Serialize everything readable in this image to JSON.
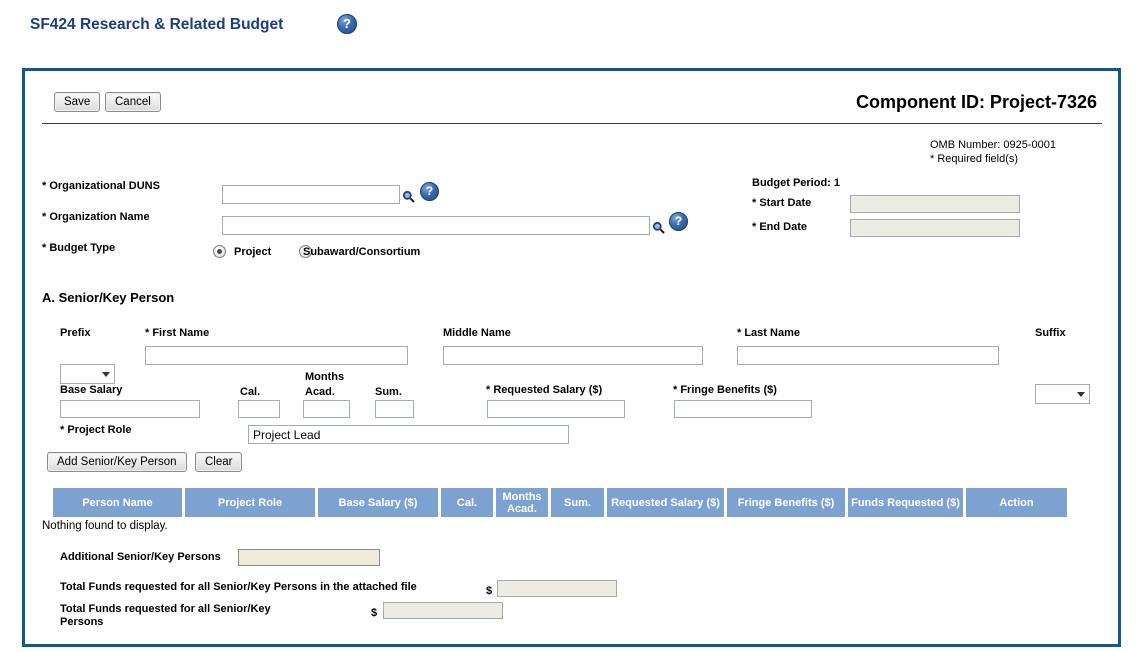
{
  "header": {
    "title": "SF424 Research & Related Budget"
  },
  "icons": {
    "help": "?"
  },
  "panel": {
    "save_label": "Save",
    "cancel_label": "Cancel",
    "component_id": "Component ID: Project-7326",
    "omb_number": "OMB Number: 0925-0001",
    "required_note": "* Required field(s)"
  },
  "org": {
    "duns_label": "* Organizational DUNS",
    "duns_value": "",
    "name_label": "* Organization Name",
    "name_value": "",
    "budget_type_label": "* Budget Type",
    "option_project": "Project",
    "option_subaward": "Subaward/Consortium",
    "selected_option": "Project"
  },
  "budget_period": {
    "label": "Budget Period: 1",
    "start_label": "* Start Date",
    "start_value": "",
    "end_label": "* End Date",
    "end_value": ""
  },
  "senior_key_person": {
    "heading": "A. Senior/Key Person",
    "prefix_label": "Prefix",
    "first_name_label": "* First Name",
    "middle_name_label": "Middle Name",
    "last_name_label": "* Last Name",
    "suffix_label": "Suffix",
    "base_salary_label": "Base Salary",
    "months_label": "Months",
    "cal_label": "Cal.",
    "acad_label": "Acad.",
    "sum_label": "Sum.",
    "requested_salary_label": "* Requested Salary ($)",
    "fringe_benefits_label": "* Fringe Benefits ($)",
    "project_role_label": "* Project Role",
    "project_role_value": "Project Lead",
    "add_button_label": "Add Senior/Key Person",
    "clear_button_label": "Clear"
  },
  "persons_table": {
    "columns": [
      "Person Name",
      "Project Role",
      "Base Salary ($)",
      "Cal.",
      "Months\nAcad.",
      "Sum.",
      "Requested Salary ($)",
      "Fringe Benefits ($)",
      "Funds Requested ($)",
      "Action"
    ],
    "rows": [],
    "empty_message": "Nothing found to display."
  },
  "totals": {
    "additional_label": "Additional Senior/Key Persons",
    "additional_value": "",
    "attached_total_label": "Total Funds requested for all Senior/Key Persons in the attached file",
    "attached_total_value": "",
    "overall_total_label": "Total Funds requested for all Senior/Key Persons",
    "overall_total_value": "",
    "currency_symbol": "$"
  },
  "colors": {
    "title_navy": "#1b3f7d",
    "panel_border": "#0f5a89",
    "table_header_bg": "#7da2d1",
    "help_icon_bg": "#2b5ea7",
    "disabled_bg": "#ebebe4",
    "attachment_bg": "#efebdc"
  }
}
